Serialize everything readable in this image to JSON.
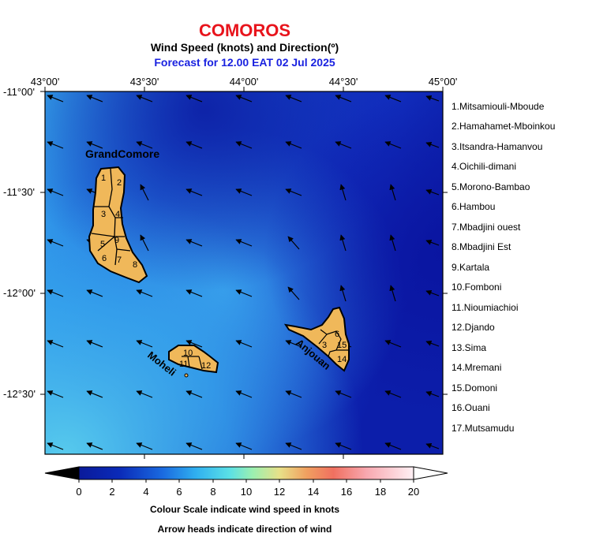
{
  "title": "COMOROS",
  "subtitle": "Wind Speed (knots) and Direction(º)",
  "forecast": "Forecast for  12.00 EAT 02 Jul 2025",
  "x_ticks": [
    "43°00'",
    "43°30'",
    "44°00'",
    "44°30'",
    "45°00'"
  ],
  "y_ticks": [
    "-11°00'",
    "-11°30'",
    "-12°00'",
    "-12°30'"
  ],
  "islands": {
    "grand_comore": "GrandComore",
    "moheli": "Moheli",
    "anjouan": "Anjouan"
  },
  "region_numbers": {
    "grand_comore": [
      "1",
      "2",
      "3",
      "4",
      "5",
      "9",
      "6",
      "7",
      "8"
    ],
    "moheli": [
      "10",
      "11",
      "12"
    ],
    "anjouan": [
      "6",
      "3",
      "15",
      "14"
    ]
  },
  "legend": [
    "1.Mitsamiouli-Mboude",
    "2.Hamahamet-Mboinkou",
    "3.Itsandra-Hamanvou",
    "4.Oichili-dimani",
    "5.Morono-Bambao",
    "6.Hambou",
    "7.Mbadjini ouest",
    "8.Mbadjini Est",
    "9.Kartala",
    "10.Fomboni",
    "11.Nioumiachioi",
    "12.Djando",
    "13.Sima",
    "14.Mremani",
    "15.Domoni",
    "16.Ouani",
    "17.Mutsamudu"
  ],
  "colorbar": {
    "labels": [
      "0",
      "2",
      "4",
      "6",
      "8",
      "10",
      "12",
      "14",
      "16",
      "18",
      "20"
    ],
    "colors": [
      "#000000",
      "#0a24b8",
      "#1460e0",
      "#2aa0f0",
      "#50d6f0",
      "#a8f0b8",
      "#f0d87a",
      "#f07a4a",
      "#f0505a",
      "#f8b0b8",
      "#ffffff"
    ]
  },
  "notes": {
    "line1": "Colour Scale indicate wind speed in knots",
    "line2": "Arrow heads indicate direction of wind"
  }
}
